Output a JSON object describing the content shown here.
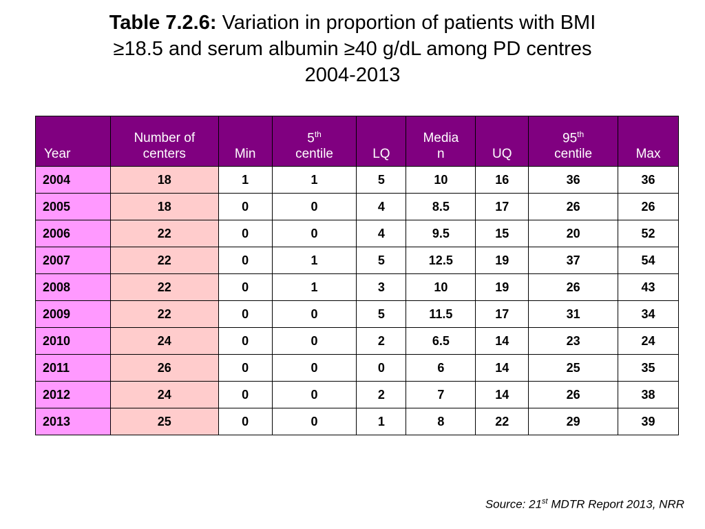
{
  "title": {
    "label": "Table 7.2.6:",
    "text_line1": "Variation in proportion of patients with BMI",
    "text_line2": "≥18.5 and serum albumin ≥40 g/dL among PD centres",
    "text_line3": "2004-2013"
  },
  "table": {
    "headers": {
      "year": "Year",
      "centers_1": "Number of",
      "centers_2": "centers",
      "min": "Min",
      "p5_num": "5",
      "p5_sup": "th",
      "p5_word": "centile",
      "lq": "LQ",
      "median_1": "Media",
      "median_2": "n",
      "uq": "UQ",
      "p95_num": "95",
      "p95_sup": "th",
      "p95_word": "centile",
      "max": "Max"
    },
    "rows": [
      {
        "year": "2004",
        "centers": "18",
        "min": "1",
        "p5": "1",
        "lq": "5",
        "median": "10",
        "uq": "16",
        "p95": "36",
        "max": "36"
      },
      {
        "year": "2005",
        "centers": "18",
        "min": "0",
        "p5": "0",
        "lq": "4",
        "median": "8.5",
        "uq": "17",
        "p95": "26",
        "max": "26"
      },
      {
        "year": "2006",
        "centers": "22",
        "min": "0",
        "p5": "0",
        "lq": "4",
        "median": "9.5",
        "uq": "15",
        "p95": "20",
        "max": "52"
      },
      {
        "year": "2007",
        "centers": "22",
        "min": "0",
        "p5": "1",
        "lq": "5",
        "median": "12.5",
        "uq": "19",
        "p95": "37",
        "max": "54"
      },
      {
        "year": "2008",
        "centers": "22",
        "min": "0",
        "p5": "1",
        "lq": "3",
        "median": "10",
        "uq": "19",
        "p95": "26",
        "max": "43"
      },
      {
        "year": "2009",
        "centers": "22",
        "min": "0",
        "p5": "0",
        "lq": "5",
        "median": "11.5",
        "uq": "17",
        "p95": "31",
        "max": "34"
      },
      {
        "year": "2010",
        "centers": "24",
        "min": "0",
        "p5": "0",
        "lq": "2",
        "median": "6.5",
        "uq": "14",
        "p95": "23",
        "max": "24"
      },
      {
        "year": "2011",
        "centers": "26",
        "min": "0",
        "p5": "0",
        "lq": "0",
        "median": "6",
        "uq": "14",
        "p95": "25",
        "max": "35"
      },
      {
        "year": "2012",
        "centers": "24",
        "min": "0",
        "p5": "0",
        "lq": "2",
        "median": "7",
        "uq": "14",
        "p95": "26",
        "max": "38"
      },
      {
        "year": "2013",
        "centers": "25",
        "min": "0",
        "p5": "0",
        "lq": "1",
        "median": "8",
        "uq": "22",
        "p95": "29",
        "max": "39"
      }
    ]
  },
  "source": {
    "prefix": "Source: 21",
    "sup": "st",
    "suffix": " MDTR Report 2013, NRR"
  },
  "colors": {
    "header_bg": "#800080",
    "year_col_bg": "#ff99ff",
    "centers_col_bg": "#ffcccc"
  }
}
